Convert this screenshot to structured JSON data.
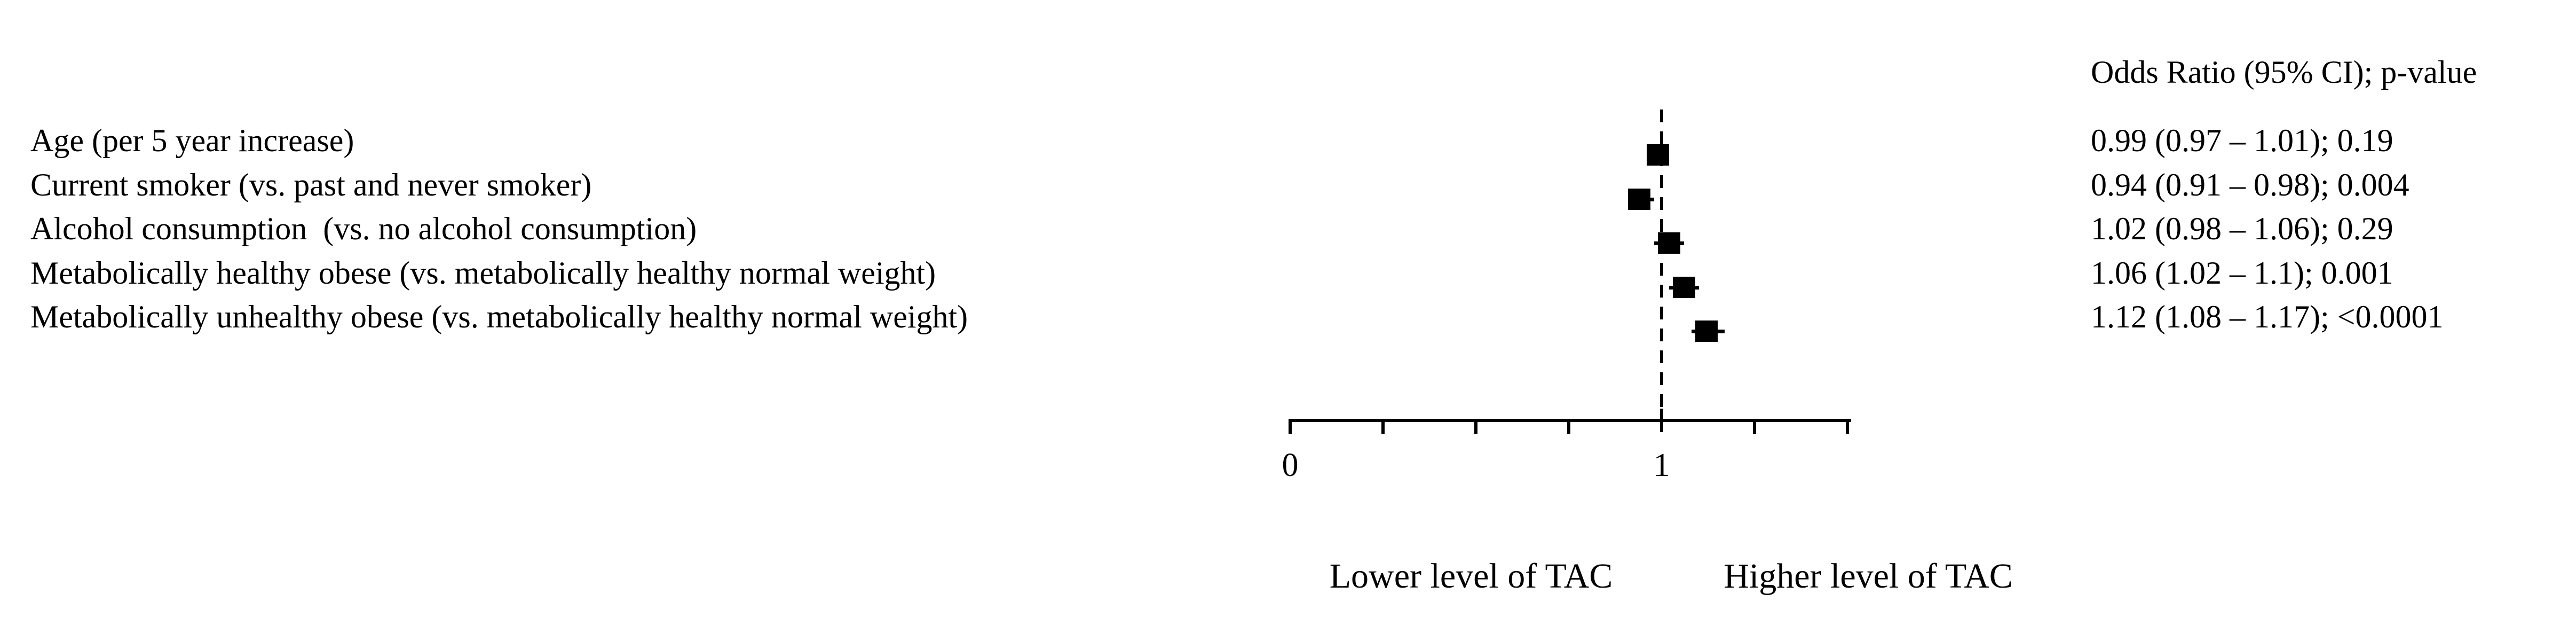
{
  "chart_data": {
    "type": "forest",
    "title": "",
    "column_header": "Odds Ratio (95% CI); p-value",
    "rows": [
      {
        "label": "Age (per 5 year increase)",
        "or": 0.99,
        "ci": [
          0.97,
          1.01
        ],
        "p": "0.19",
        "display": "0.99 (0.97 – 1.01); 0.19"
      },
      {
        "label": "Current smoker (vs. past and never smoker)",
        "or": 0.94,
        "ci": [
          0.91,
          0.98
        ],
        "p": "0.004",
        "display": "0.94 (0.91 – 0.98); 0.004"
      },
      {
        "label": "Alcohol consumption  (vs. no alcohol consumption)",
        "or": 1.02,
        "ci": [
          0.98,
          1.06
        ],
        "p": "0.29",
        "display": "1.02 (0.98 – 1.06); 0.29"
      },
      {
        "label": "Metabolically healthy obese (vs. metabolically healthy normal weight)",
        "or": 1.06,
        "ci": [
          1.02,
          1.1
        ],
        "p": "0.001",
        "display": "1.06 (1.02 – 1.1); 0.001"
      },
      {
        "label": "Metabolically unhealthy obese (vs. metabolically healthy normal weight)",
        "or": 1.12,
        "ci": [
          1.08,
          1.17
        ],
        "p": "<0.0001",
        "display": "1.12 (1.08 – 1.17); <0.0001"
      }
    ],
    "x_axis": {
      "min": 0,
      "max": 1.5,
      "tick_step": 0.25,
      "labeled_ticks": [
        0,
        1
      ],
      "null_line_x": 1,
      "grid": "off"
    },
    "x_label_left": "Lower level of TAC",
    "x_label_right": "Higher level of TAC",
    "marker_color": "#000000",
    "background_color": "#ffffff",
    "legend": "none"
  }
}
